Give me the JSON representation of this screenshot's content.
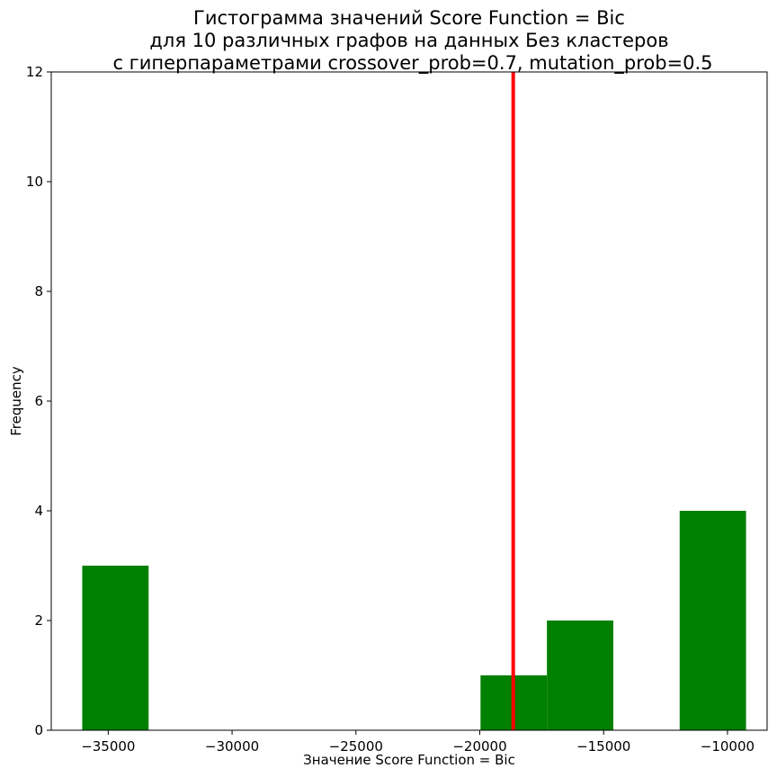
{
  "chart_data": {
    "type": "bar",
    "title": [
      "Гистограмма значений Score Function = Bic",
      "для 10 различных графов на данных Без кластеров",
      "с гиперпараметрами crossover_prob=0.7, mutation_prob=0.5"
    ],
    "xlabel": "Значение Score Function = Bic",
    "ylabel": "Frequency",
    "xlim": [
      -37300,
      -8400
    ],
    "ylim": [
      0,
      12
    ],
    "xticks": [
      -35000,
      -30000,
      -25000,
      -20000,
      -15000,
      -10000
    ],
    "xtick_labels": [
      "−35000",
      "−30000",
      "−25000",
      "−20000",
      "−15000",
      "−10000"
    ],
    "yticks": [
      0,
      2,
      4,
      6,
      8,
      10,
      12
    ],
    "ytick_labels": [
      "0",
      "2",
      "4",
      "6",
      "8",
      "10",
      "12"
    ],
    "bins": [
      {
        "x0": -36050,
        "x1": -33370,
        "count": 3
      },
      {
        "x0": -33370,
        "x1": -30690,
        "count": 0
      },
      {
        "x0": -30690,
        "x1": -28010,
        "count": 0
      },
      {
        "x0": -28010,
        "x1": -25330,
        "count": 0
      },
      {
        "x0": -25330,
        "x1": -22650,
        "count": 0
      },
      {
        "x0": -22650,
        "x1": -19970,
        "count": 0
      },
      {
        "x0": -19970,
        "x1": -17290,
        "count": 1
      },
      {
        "x0": -17290,
        "x1": -14610,
        "count": 2
      },
      {
        "x0": -14610,
        "x1": -11930,
        "count": 0
      },
      {
        "x0": -11930,
        "x1": -9250,
        "count": 4
      }
    ],
    "vline": {
      "x": -18650,
      "color": "#ff0000"
    },
    "bar_color": "#008000",
    "grid": false,
    "legend": "none"
  }
}
